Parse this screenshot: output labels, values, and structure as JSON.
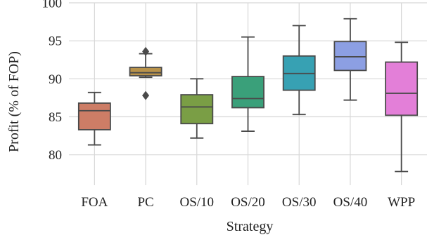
{
  "chart_data": {
    "type": "box",
    "title": "",
    "xlabel": "Strategy",
    "ylabel": "Profit (% of FOP)",
    "ylim": [
      76,
      100
    ],
    "yticks": [
      80,
      85,
      90,
      95,
      100
    ],
    "grid": true,
    "categories": [
      "FOA",
      "PC",
      "OS/10",
      "OS/20",
      "OS/30",
      "OS/40",
      "WPP"
    ],
    "series": [
      {
        "category": "FOA",
        "whisker_low": 81.3,
        "q1": 83.3,
        "median": 85.8,
        "q3": 86.8,
        "whisker_high": 88.2,
        "outliers": [],
        "color": "#cd7d66"
      },
      {
        "category": "PC",
        "whisker_low": 90.2,
        "q1": 90.4,
        "median": 90.8,
        "q3": 91.5,
        "whisker_high": 93.3,
        "outliers": [
          87.8,
          93.6
        ],
        "color": "#b8924a"
      },
      {
        "category": "OS/10",
        "whisker_low": 82.2,
        "q1": 84.1,
        "median": 86.3,
        "q3": 87.9,
        "whisker_high": 90.0,
        "outliers": [],
        "color": "#7a9e45"
      },
      {
        "category": "OS/20",
        "whisker_low": 83.1,
        "q1": 86.2,
        "median": 87.4,
        "q3": 90.3,
        "whisker_high": 95.5,
        "outliers": [],
        "color": "#3aa07a"
      },
      {
        "category": "OS/30",
        "whisker_low": 85.3,
        "q1": 88.5,
        "median": 90.7,
        "q3": 93.0,
        "whisker_high": 97.0,
        "outliers": [],
        "color": "#37a1b3"
      },
      {
        "category": "OS/40",
        "whisker_low": 87.2,
        "q1": 91.1,
        "median": 92.9,
        "q3": 94.9,
        "whisker_high": 97.9,
        "outliers": [],
        "color": "#8c9fe3"
      },
      {
        "category": "WPP",
        "whisker_low": 77.8,
        "q1": 85.2,
        "median": 88.1,
        "q3": 92.2,
        "whisker_high": 94.8,
        "outliers": [],
        "color": "#e37fd8"
      }
    ]
  }
}
